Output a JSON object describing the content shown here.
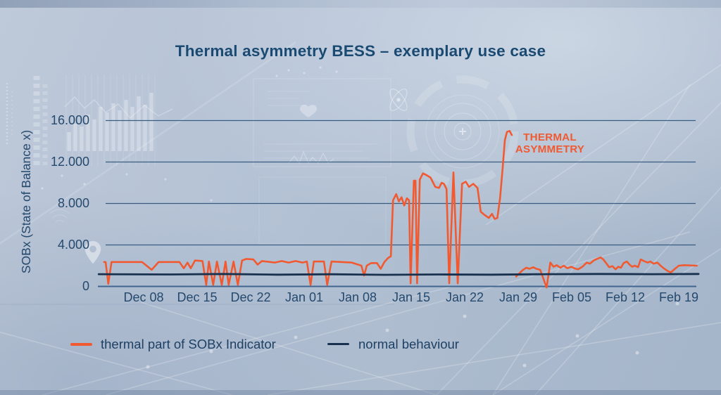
{
  "colors": {
    "thermal": "#f15a31",
    "normal": "#17314f",
    "grid": "#2f547b",
    "axis_zero_line": "#3a608c",
    "title_text": "#1a4a72",
    "axis_text": "#25496d"
  },
  "annotation": {
    "line1": "THERMAL",
    "line2": "ASYMMETRY"
  },
  "legend": {
    "thermal_label": "thermal part of SOBx Indicator",
    "normal_label": "normal behaviour"
  },
  "chart_data": {
    "type": "line",
    "title": "Thermal asymmetry BESS – exemplary use case",
    "xlabel": "",
    "ylabel": "SOBx (State of Balance x)",
    "ylim": [
      0,
      16000
    ],
    "grid": "horizontal gridlines at y tick values",
    "legend_position": "bottom",
    "x_unit": "tick index, 0 = Dec 08, uniform spacing per labeled tick",
    "x_ticks": [
      {
        "t": 0,
        "label": "Dec 08"
      },
      {
        "t": 1,
        "label": "Dec 15"
      },
      {
        "t": 2,
        "label": "Dec 22"
      },
      {
        "t": 3,
        "label": "Jan 01"
      },
      {
        "t": 4,
        "label": "Jan 08"
      },
      {
        "t": 5,
        "label": "Jan 15"
      },
      {
        "t": 6,
        "label": "Jan 22"
      },
      {
        "t": 7,
        "label": "Jan 29"
      },
      {
        "t": 8,
        "label": "Feb 05"
      },
      {
        "t": 9,
        "label": "Feb 12"
      },
      {
        "t": 10,
        "label": "Feb 19"
      }
    ],
    "y_ticks": [
      {
        "value": 16000,
        "label": "16.000"
      },
      {
        "value": 12000,
        "label": "12.000"
      },
      {
        "value": 8000,
        "label": "8.000"
      },
      {
        "value": 4000,
        "label": "4.000"
      },
      {
        "value": 0,
        "label": "0"
      }
    ],
    "annotation": {
      "text": "THERMAL ASYMMETRY",
      "target_t": 6.84,
      "target_value": 15000
    },
    "series": [
      {
        "name": "thermal part of SOBx Indicator",
        "color_key": "thermal",
        "segments": [
          [
            [
              -0.74,
              2350
            ],
            [
              -0.71,
              2350
            ],
            [
              -0.66,
              250
            ],
            [
              -0.6,
              2350
            ],
            [
              -0.03,
              2350
            ],
            [
              0.15,
              1600
            ],
            [
              0.28,
              2350
            ],
            [
              0.67,
              2350
            ],
            [
              0.75,
              1750
            ],
            [
              0.82,
              2300
            ],
            [
              0.88,
              1750
            ],
            [
              0.96,
              2500
            ],
            [
              1.1,
              2450
            ],
            [
              1.17,
              150
            ],
            [
              1.22,
              2400
            ],
            [
              1.3,
              150
            ],
            [
              1.37,
              2400
            ],
            [
              1.46,
              150
            ],
            [
              1.53,
              2400
            ],
            [
              1.59,
              150
            ],
            [
              1.68,
              2400
            ],
            [
              1.76,
              150
            ],
            [
              1.84,
              2500
            ],
            [
              1.92,
              2650
            ],
            [
              2.05,
              2600
            ],
            [
              2.13,
              2100
            ],
            [
              2.21,
              2450
            ],
            [
              2.45,
              2300
            ],
            [
              2.58,
              2450
            ],
            [
              2.71,
              2300
            ],
            [
              2.84,
              2450
            ],
            [
              2.97,
              2300
            ],
            [
              3.05,
              2400
            ],
            [
              3.12,
              150
            ],
            [
              3.18,
              2400
            ],
            [
              3.37,
              2400
            ],
            [
              3.43,
              150
            ],
            [
              3.51,
              2400
            ],
            [
              3.89,
              2300
            ],
            [
              4.07,
              2000
            ],
            [
              4.12,
              1050
            ],
            [
              4.17,
              2000
            ],
            [
              4.25,
              2250
            ],
            [
              4.36,
              2250
            ],
            [
              4.43,
              1700
            ],
            [
              4.5,
              2350
            ],
            [
              4.57,
              2750
            ],
            [
              4.62,
              2900
            ],
            [
              4.66,
              8300
            ],
            [
              4.72,
              8900
            ],
            [
              4.77,
              8200
            ],
            [
              4.82,
              8600
            ],
            [
              4.87,
              7800
            ],
            [
              4.92,
              8500
            ],
            [
              4.96,
              8300
            ],
            [
              4.99,
              300
            ],
            [
              5.05,
              10200
            ],
            [
              5.08,
              10200
            ],
            [
              5.11,
              300
            ],
            [
              5.16,
              10300
            ],
            [
              5.22,
              10900
            ],
            [
              5.3,
              10700
            ],
            [
              5.36,
              10500
            ],
            [
              5.45,
              9600
            ],
            [
              5.52,
              9500
            ],
            [
              5.57,
              10000
            ],
            [
              5.61,
              9900
            ],
            [
              5.66,
              9400
            ],
            [
              5.71,
              300
            ],
            [
              5.79,
              11000
            ],
            [
              5.87,
              300
            ],
            [
              5.95,
              9900
            ],
            [
              6.02,
              10100
            ],
            [
              6.08,
              9600
            ],
            [
              6.16,
              9900
            ],
            [
              6.24,
              9500
            ],
            [
              6.3,
              7200
            ],
            [
              6.37,
              6900
            ],
            [
              6.45,
              6600
            ],
            [
              6.51,
              7000
            ],
            [
              6.56,
              6500
            ],
            [
              6.61,
              6600
            ],
            [
              6.66,
              8500
            ],
            [
              6.71,
              11500
            ],
            [
              6.75,
              14100
            ],
            [
              6.79,
              14900
            ],
            [
              6.84,
              15000
            ],
            [
              6.88,
              14600
            ]
          ],
          [
            [
              6.96,
              950
            ],
            [
              7.01,
              1200
            ],
            [
              7.08,
              1550
            ],
            [
              7.15,
              1800
            ],
            [
              7.21,
              1700
            ],
            [
              7.28,
              1850
            ],
            [
              7.34,
              1700
            ],
            [
              7.41,
              1600
            ],
            [
              7.53,
              -100
            ],
            [
              7.6,
              2300
            ],
            [
              7.66,
              1900
            ],
            [
              7.72,
              2050
            ],
            [
              7.79,
              1800
            ],
            [
              7.85,
              2000
            ],
            [
              7.92,
              1750
            ],
            [
              7.99,
              1900
            ],
            [
              8.05,
              1750
            ],
            [
              8.12,
              1650
            ],
            [
              8.2,
              1900
            ],
            [
              8.28,
              2300
            ],
            [
              8.34,
              2200
            ],
            [
              8.41,
              2500
            ],
            [
              8.47,
              2650
            ],
            [
              8.54,
              2800
            ],
            [
              8.59,
              2600
            ],
            [
              8.65,
              2200
            ],
            [
              8.7,
              1850
            ],
            [
              8.76,
              1950
            ],
            [
              8.82,
              1650
            ],
            [
              8.87,
              1900
            ],
            [
              8.92,
              1800
            ],
            [
              8.97,
              2250
            ],
            [
              9.03,
              2400
            ],
            [
              9.08,
              2100
            ],
            [
              9.13,
              1900
            ],
            [
              9.18,
              2000
            ],
            [
              9.24,
              1850
            ],
            [
              9.29,
              2600
            ],
            [
              9.35,
              2450
            ],
            [
              9.42,
              2300
            ],
            [
              9.47,
              2400
            ],
            [
              9.53,
              2200
            ],
            [
              9.6,
              2300
            ],
            [
              9.66,
              2000
            ],
            [
              9.72,
              1750
            ],
            [
              9.79,
              1500
            ],
            [
              9.85,
              1350
            ],
            [
              9.93,
              1700
            ],
            [
              10.0,
              2000
            ],
            [
              10.1,
              2050
            ],
            [
              10.34,
              2000
            ]
          ]
        ]
      },
      {
        "name": "normal behaviour",
        "color_key": "normal",
        "segments": [
          [
            [
              -0.84,
              1180
            ],
            [
              0.5,
              1150
            ],
            [
              1.5,
              1200
            ],
            [
              2.5,
              1130
            ],
            [
              3.5,
              1170
            ],
            [
              4.5,
              1120
            ],
            [
              5.5,
              1150
            ],
            [
              6.5,
              1130
            ],
            [
              7.5,
              1180
            ],
            [
              8.5,
              1200
            ],
            [
              9.5,
              1180
            ],
            [
              10.37,
              1200
            ]
          ]
        ]
      }
    ]
  }
}
